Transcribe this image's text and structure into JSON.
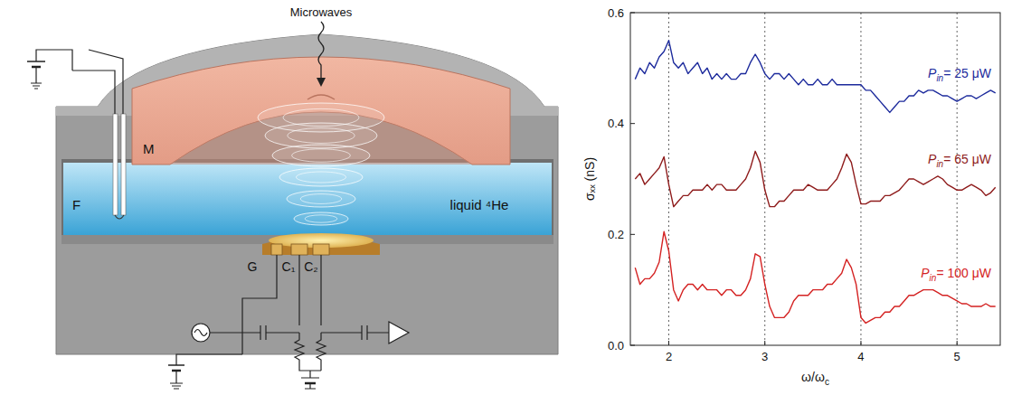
{
  "diagram": {
    "labels": {
      "microwaves": "Microwaves",
      "mirror": "M",
      "filament": "F",
      "helium": "liquid ⁴He",
      "guard": "G",
      "c1": "C₁",
      "c2": "C₂"
    }
  },
  "chart_data": {
    "type": "line",
    "x_label": "ω/ωc",
    "y_label": "σₓₓ (nS)",
    "x": [
      1.65,
      1.7,
      1.75,
      1.8,
      1.85,
      1.9,
      1.95,
      2.0,
      2.05,
      2.1,
      2.15,
      2.2,
      2.25,
      2.3,
      2.35,
      2.4,
      2.45,
      2.5,
      2.55,
      2.6,
      2.65,
      2.7,
      2.75,
      2.8,
      2.85,
      2.9,
      2.95,
      3.0,
      3.05,
      3.1,
      3.15,
      3.2,
      3.25,
      3.3,
      3.35,
      3.4,
      3.45,
      3.5,
      3.55,
      3.6,
      3.65,
      3.7,
      3.75,
      3.8,
      3.85,
      3.9,
      3.95,
      4.0,
      4.05,
      4.1,
      4.15,
      4.2,
      4.25,
      4.3,
      4.35,
      4.4,
      4.45,
      4.5,
      4.55,
      4.6,
      4.65,
      4.7,
      4.75,
      4.8,
      4.85,
      4.9,
      4.95,
      5.0,
      5.05,
      5.1,
      5.15,
      5.2,
      5.25,
      5.3,
      5.35,
      5.4
    ],
    "series": [
      {
        "name": "Pin= 25 μW",
        "color": "#1c2a9c",
        "values": [
          0.48,
          0.5,
          0.49,
          0.51,
          0.5,
          0.52,
          0.53,
          0.55,
          0.51,
          0.5,
          0.51,
          0.49,
          0.5,
          0.51,
          0.49,
          0.5,
          0.48,
          0.49,
          0.48,
          0.49,
          0.48,
          0.48,
          0.49,
          0.49,
          0.51,
          0.525,
          0.51,
          0.49,
          0.48,
          0.49,
          0.49,
          0.48,
          0.49,
          0.48,
          0.47,
          0.48,
          0.47,
          0.47,
          0.48,
          0.47,
          0.47,
          0.48,
          0.47,
          0.47,
          0.47,
          0.47,
          0.47,
          0.47,
          0.46,
          0.46,
          0.45,
          0.44,
          0.43,
          0.42,
          0.43,
          0.44,
          0.44,
          0.45,
          0.45,
          0.46,
          0.455,
          0.46,
          0.46,
          0.455,
          0.45,
          0.45,
          0.445,
          0.44,
          0.445,
          0.45,
          0.45,
          0.445,
          0.45,
          0.455,
          0.46,
          0.455
        ]
      },
      {
        "name": "Pin= 65 μW",
        "color": "#8e1b1b",
        "values": [
          0.3,
          0.31,
          0.29,
          0.3,
          0.31,
          0.32,
          0.34,
          0.29,
          0.25,
          0.26,
          0.27,
          0.27,
          0.28,
          0.28,
          0.28,
          0.29,
          0.28,
          0.29,
          0.29,
          0.28,
          0.28,
          0.28,
          0.29,
          0.3,
          0.32,
          0.35,
          0.33,
          0.28,
          0.25,
          0.25,
          0.26,
          0.26,
          0.27,
          0.28,
          0.28,
          0.28,
          0.29,
          0.285,
          0.28,
          0.28,
          0.28,
          0.29,
          0.3,
          0.32,
          0.345,
          0.33,
          0.29,
          0.255,
          0.255,
          0.26,
          0.26,
          0.26,
          0.27,
          0.27,
          0.275,
          0.28,
          0.29,
          0.3,
          0.3,
          0.295,
          0.29,
          0.295,
          0.3,
          0.305,
          0.3,
          0.29,
          0.285,
          0.28,
          0.28,
          0.285,
          0.29,
          0.285,
          0.28,
          0.27,
          0.275,
          0.285
        ]
      },
      {
        "name": "Pin= 100 μW",
        "color": "#d42222",
        "values": [
          0.14,
          0.11,
          0.12,
          0.12,
          0.13,
          0.15,
          0.205,
          0.17,
          0.1,
          0.08,
          0.1,
          0.11,
          0.11,
          0.1,
          0.11,
          0.1,
          0.1,
          0.1,
          0.09,
          0.1,
          0.1,
          0.09,
          0.09,
          0.1,
          0.12,
          0.165,
          0.16,
          0.11,
          0.07,
          0.05,
          0.05,
          0.05,
          0.06,
          0.08,
          0.09,
          0.09,
          0.09,
          0.1,
          0.1,
          0.1,
          0.11,
          0.11,
          0.12,
          0.13,
          0.155,
          0.14,
          0.11,
          0.05,
          0.04,
          0.045,
          0.05,
          0.05,
          0.06,
          0.06,
          0.07,
          0.07,
          0.08,
          0.09,
          0.09,
          0.095,
          0.1,
          0.1,
          0.1,
          0.095,
          0.09,
          0.09,
          0.085,
          0.08,
          0.075,
          0.075,
          0.07,
          0.07,
          0.07,
          0.075,
          0.07,
          0.07
        ]
      }
    ],
    "xlim": [
      1.6,
      5.45
    ],
    "ylim": [
      0,
      0.6
    ],
    "xticks": [
      2,
      3,
      4,
      5
    ],
    "yticks": [
      {
        "value": 0,
        "label": "0.0"
      },
      0.2,
      0.4,
      0.6
    ],
    "grid": true
  }
}
